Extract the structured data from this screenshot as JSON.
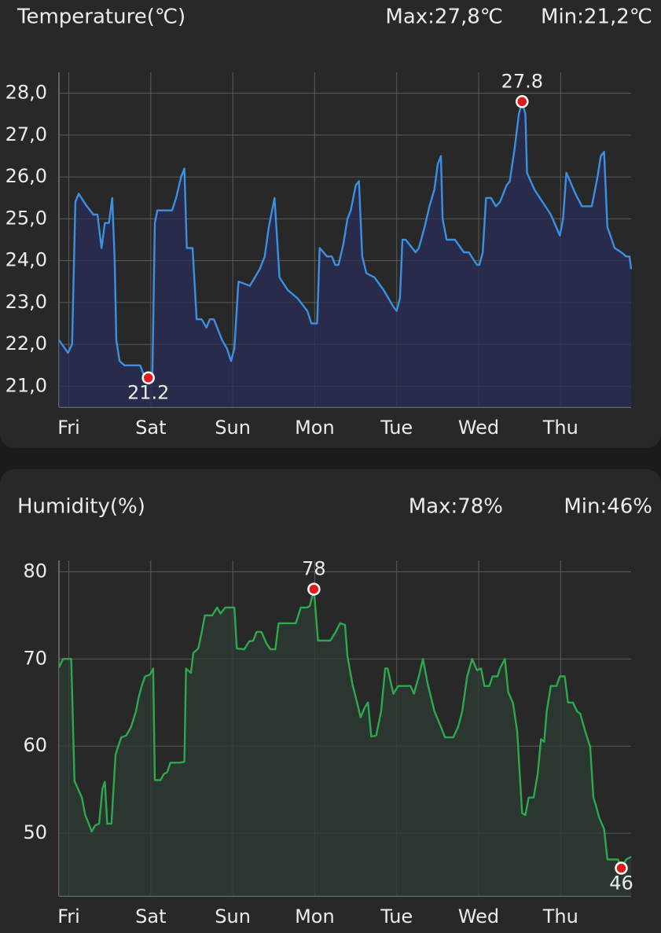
{
  "chart_data": [
    {
      "type": "line",
      "title": "Temperature(℃)",
      "max_label": "Max:27,8℃",
      "min_label": "Min:21,2℃",
      "color": "#3d8fe0",
      "fill_color": "#2a2c55",
      "marker_color": "#e01b1b",
      "grid": true,
      "xlim": [
        -0.12,
        6.86
      ],
      "xticks": [
        {
          "value": 0,
          "label": "Fri"
        },
        {
          "value": 1,
          "label": "Sat"
        },
        {
          "value": 2,
          "label": "Sun"
        },
        {
          "value": 3,
          "label": "Mon"
        },
        {
          "value": 4,
          "label": "Tue"
        },
        {
          "value": 5,
          "label": "Wed"
        },
        {
          "value": 6,
          "label": "Thu"
        }
      ],
      "ylim": [
        20.5,
        28.5
      ],
      "yticks": [
        {
          "value": 21,
          "label": "21,0"
        },
        {
          "value": 22,
          "label": "22,0"
        },
        {
          "value": 23,
          "label": "23,0"
        },
        {
          "value": 24,
          "label": "24,0"
        },
        {
          "value": 25,
          "label": "25,0"
        },
        {
          "value": 26,
          "label": "26,0"
        },
        {
          "value": 27,
          "label": "27,0"
        },
        {
          "value": 28,
          "label": "28,0"
        }
      ],
      "x": [
        -0.12,
        -0.01,
        0.04,
        0.08,
        0.12,
        0.22,
        0.3,
        0.35,
        0.4,
        0.44,
        0.49,
        0.53,
        0.56,
        0.58,
        0.62,
        0.68,
        0.87,
        0.91,
        0.97,
        1.02,
        1.05,
        1.08,
        1.26,
        1.31,
        1.37,
        1.41,
        1.44,
        1.51,
        1.56,
        1.62,
        1.68,
        1.72,
        1.77,
        1.87,
        1.93,
        1.98,
        2.02,
        2.07,
        2.21,
        2.33,
        2.39,
        2.44,
        2.51,
        2.57,
        2.67,
        2.79,
        2.91,
        2.96,
        3.03,
        3.06,
        3.15,
        3.21,
        3.25,
        3.29,
        3.35,
        3.4,
        3.44,
        3.5,
        3.54,
        3.58,
        3.63,
        3.73,
        3.84,
        3.96,
        4.0,
        4.04,
        4.07,
        4.11,
        4.23,
        4.27,
        4.34,
        4.4,
        4.46,
        4.5,
        4.54,
        4.56,
        4.61,
        4.71,
        4.82,
        4.88,
        4.98,
        5.01,
        5.05,
        5.09,
        5.15,
        5.21,
        5.26,
        5.34,
        5.38,
        5.44,
        5.49,
        5.53,
        5.57,
        5.59,
        5.68,
        5.78,
        5.88,
        5.99,
        6.03,
        6.07,
        6.18,
        6.26,
        6.38,
        6.41,
        6.45,
        6.49,
        6.53,
        6.57,
        6.66,
        6.74,
        6.8,
        6.84,
        6.86
      ],
      "values": [
        22.1,
        21.8,
        22.0,
        25.4,
        25.6,
        25.3,
        25.1,
        25.1,
        24.3,
        24.9,
        24.9,
        25.5,
        24.0,
        22.1,
        21.6,
        21.5,
        21.5,
        21.3,
        21.2,
        21.3,
        24.9,
        25.2,
        25.2,
        25.5,
        26.0,
        26.2,
        24.3,
        24.3,
        22.6,
        22.6,
        22.4,
        22.6,
        22.6,
        22.1,
        21.9,
        21.6,
        21.9,
        23.5,
        23.4,
        23.8,
        24.1,
        24.8,
        25.5,
        23.6,
        23.3,
        23.1,
        22.8,
        22.5,
        22.5,
        24.3,
        24.1,
        24.1,
        23.9,
        23.9,
        24.4,
        25.0,
        25.2,
        25.8,
        25.9,
        24.1,
        23.7,
        23.6,
        23.3,
        22.9,
        22.8,
        23.1,
        24.5,
        24.5,
        24.2,
        24.3,
        24.8,
        25.3,
        25.7,
        26.3,
        26.5,
        25.0,
        24.5,
        24.5,
        24.2,
        24.2,
        23.9,
        23.9,
        24.2,
        25.5,
        25.5,
        25.3,
        25.4,
        25.8,
        25.9,
        26.7,
        27.5,
        27.8,
        27.5,
        26.1,
        25.7,
        25.4,
        25.1,
        24.6,
        25.0,
        26.1,
        25.6,
        25.3,
        25.3,
        25.6,
        26.0,
        26.5,
        26.6,
        24.8,
        24.3,
        24.2,
        24.1,
        24.1,
        23.8
      ],
      "annotations": [
        {
          "x": 0.97,
          "y": 21.2,
          "label": "21.2"
        },
        {
          "x": 5.53,
          "y": 27.8,
          "label": "27.8"
        }
      ]
    },
    {
      "type": "line",
      "title": "Humidity(%)",
      "max_label": "Max:78%",
      "min_label": "Min:46%",
      "color": "#2ea84f",
      "fill_color": "#2b3b31",
      "marker_color": "#e01b1b",
      "grid": true,
      "xlim": [
        -0.12,
        6.86
      ],
      "xticks": [
        {
          "value": 0,
          "label": "Fri"
        },
        {
          "value": 1,
          "label": "Sat"
        },
        {
          "value": 2,
          "label": "Sun"
        },
        {
          "value": 3,
          "label": "Mon"
        },
        {
          "value": 4,
          "label": "Tue"
        },
        {
          "value": 5,
          "label": "Wed"
        },
        {
          "value": 6,
          "label": "Thu"
        }
      ],
      "ylim": [
        42.8,
        81.3
      ],
      "yticks": [
        50,
        60,
        70,
        80
      ],
      "x": [
        -0.12,
        -0.07,
        0.03,
        0.07,
        0.16,
        0.2,
        0.24,
        0.28,
        0.32,
        0.37,
        0.41,
        0.44,
        0.47,
        0.52,
        0.57,
        0.6,
        0.64,
        0.7,
        0.76,
        0.82,
        0.85,
        0.89,
        0.93,
        0.99,
        1.03,
        1.05,
        1.12,
        1.16,
        1.2,
        1.24,
        1.35,
        1.41,
        1.43,
        1.49,
        1.52,
        1.58,
        1.62,
        1.66,
        1.75,
        1.81,
        1.85,
        1.91,
        2.02,
        2.05,
        2.14,
        2.2,
        2.25,
        2.29,
        2.35,
        2.41,
        2.46,
        2.52,
        2.56,
        2.77,
        2.83,
        2.91,
        2.94,
        2.99,
        3.04,
        3.19,
        3.25,
        3.31,
        3.37,
        3.4,
        3.46,
        3.52,
        3.56,
        3.61,
        3.65,
        3.69,
        3.75,
        3.81,
        3.86,
        3.89,
        3.96,
        4.02,
        4.17,
        4.21,
        4.27,
        4.32,
        4.38,
        4.46,
        4.54,
        4.59,
        4.69,
        4.75,
        4.8,
        4.86,
        4.92,
        4.98,
        5.03,
        5.07,
        5.13,
        5.17,
        5.23,
        5.26,
        5.32,
        5.36,
        5.42,
        5.47,
        5.53,
        5.57,
        5.61,
        5.67,
        5.72,
        5.76,
        5.8,
        5.83,
        5.88,
        5.95,
        5.99,
        6.05,
        6.09,
        6.15,
        6.2,
        6.24,
        6.3,
        6.36,
        6.4,
        6.43,
        6.47,
        6.53,
        6.57,
        6.7,
        6.74,
        6.8,
        6.86
      ],
      "values": [
        69.0,
        70.0,
        70.0,
        56.0,
        54.1,
        52.1,
        51.2,
        50.2,
        50.9,
        51.1,
        55.1,
        55.9,
        51.1,
        51.1,
        59.0,
        59.9,
        61.0,
        61.2,
        62.2,
        64.0,
        65.5,
        66.9,
        68.0,
        68.2,
        68.9,
        56.1,
        56.1,
        56.8,
        57.0,
        58.1,
        58.1,
        58.2,
        68.9,
        68.4,
        70.7,
        71.2,
        73.0,
        75.0,
        75.0,
        75.9,
        75.2,
        75.9,
        75.9,
        71.2,
        71.1,
        72.0,
        72.1,
        73.1,
        73.1,
        71.8,
        71.1,
        71.1,
        74.1,
        74.1,
        75.9,
        75.9,
        76.1,
        78.0,
        72.1,
        72.1,
        73.0,
        74.1,
        73.9,
        70.3,
        67.1,
        64.9,
        63.3,
        64.4,
        65.0,
        61.1,
        61.2,
        64.0,
        68.9,
        68.9,
        66.0,
        66.9,
        66.9,
        66.0,
        68.0,
        70.0,
        67.1,
        64.0,
        62.2,
        61.0,
        61.0,
        62.2,
        64.0,
        68.0,
        70.0,
        68.7,
        68.9,
        66.9,
        66.9,
        68.0,
        68.0,
        68.9,
        70.0,
        66.2,
        64.9,
        61.7,
        52.3,
        52.1,
        54.1,
        54.1,
        56.8,
        60.8,
        60.5,
        64.0,
        66.9,
        66.9,
        68.0,
        68.0,
        65.0,
        65.0,
        64.0,
        63.7,
        61.7,
        59.9,
        54.1,
        53.2,
        51.8,
        50.5,
        47.0,
        47.0,
        46.0,
        47.0,
        47.3
      ],
      "annotations": [
        {
          "x": 2.99,
          "y": 78,
          "label": "78"
        },
        {
          "x": 6.74,
          "y": 46,
          "label": "46"
        }
      ]
    }
  ]
}
